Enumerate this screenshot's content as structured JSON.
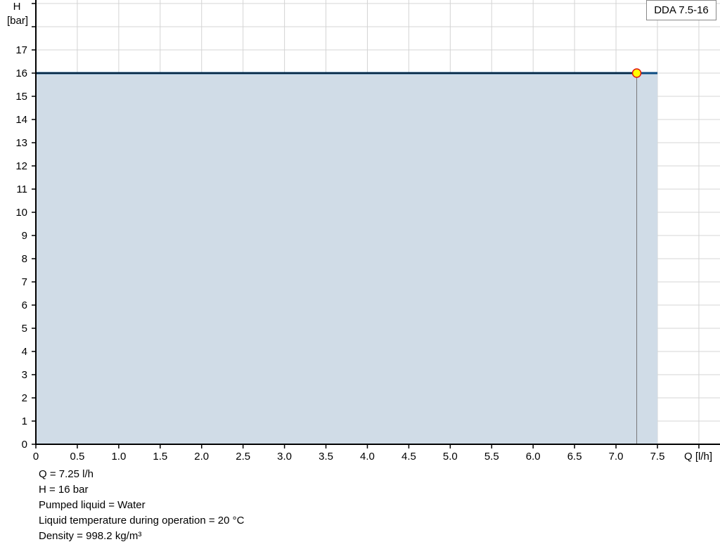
{
  "chart_data": {
    "type": "area",
    "title": "",
    "xlabel": "Q [l/h]",
    "ylabel_line1": "H",
    "ylabel_line2": "[bar]",
    "xlim": [
      0,
      8.0
    ],
    "ylim": [
      0,
      19
    ],
    "x_ticks": [
      "0",
      "0.5",
      "1.0",
      "1.5",
      "2.0",
      "2.5",
      "3.0",
      "3.5",
      "4.0",
      "4.5",
      "5.0",
      "5.5",
      "6.0",
      "6.5",
      "7.0",
      "7.5"
    ],
    "y_ticks": [
      "0",
      "1",
      "2",
      "3",
      "4",
      "5",
      "6",
      "7",
      "8",
      "9",
      "10",
      "11",
      "12",
      "13",
      "14",
      "15",
      "16",
      "17"
    ],
    "grid": true,
    "legend_position": "top-right",
    "series": [
      {
        "name": "DDA 7.5-16",
        "x": [
          0,
          7.5
        ],
        "y": [
          16,
          16
        ],
        "color": "#0a4a80",
        "fill": "#d0dce7"
      }
    ],
    "operating_point": {
      "x": 7.25,
      "y": 16,
      "fill": "#ffff00",
      "stroke": "#e01010"
    }
  },
  "info": {
    "q": "Q = 7.25 l/h",
    "h": "H = 16 bar",
    "liquid": "Pumped liquid = Water",
    "temperature": "Liquid temperature during operation = 20 °C",
    "density": "Density = 998.2 kg/m³"
  }
}
